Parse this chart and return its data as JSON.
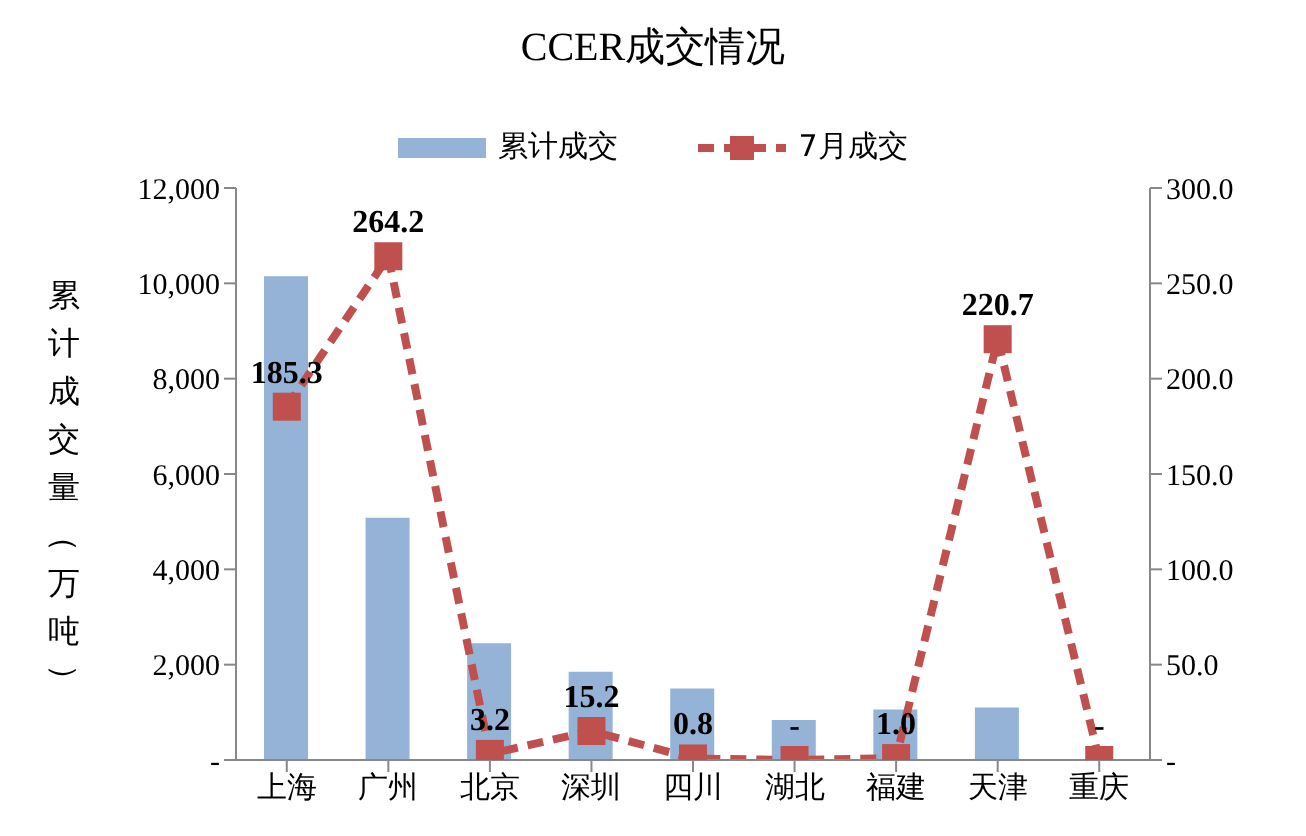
{
  "chart_data": {
    "type": "bar",
    "title": "CCER成交情况",
    "ylabel": "累计成交量（万吨）",
    "categories": [
      "上海",
      "广州",
      "北京",
      "深圳",
      "四川",
      "湖北",
      "福建",
      "天津",
      "重庆"
    ],
    "series": [
      {
        "name": "累计成交",
        "color": "#95b3d7",
        "values": [
          10150,
          5080,
          2450,
          1850,
          1500,
          840,
          1060,
          1100,
          0
        ]
      },
      {
        "name": "7月成交",
        "type": "line",
        "axis": "y2",
        "color": "#c0504d",
        "marker": "square",
        "line_style": "dashed",
        "values": [
          185.3,
          264.2,
          3.2,
          15.2,
          0.8,
          0,
          1.0,
          220.7,
          0
        ],
        "value_labels": [
          "185.3",
          "264.2",
          "3.2",
          "15.2",
          "0.8",
          "-",
          "1.0",
          "220.7",
          "-"
        ]
      }
    ],
    "ylim": [
      0,
      12000
    ],
    "yticks": [
      {
        "value": 0,
        "label": "-"
      },
      {
        "value": 2000,
        "label": "2,000"
      },
      {
        "value": 4000,
        "label": "4,000"
      },
      {
        "value": 6000,
        "label": "6,000"
      },
      {
        "value": 8000,
        "label": "8,000"
      },
      {
        "value": 10000,
        "label": "10,000"
      },
      {
        "value": 12000,
        "label": "12,000"
      }
    ],
    "y2lim": [
      0,
      300
    ],
    "y2ticks": [
      {
        "value": 0,
        "label": "-"
      },
      {
        "value": 50,
        "label": "50.0"
      },
      {
        "value": 100,
        "label": "100.0"
      },
      {
        "value": 150,
        "label": "150.0"
      },
      {
        "value": 200,
        "label": "200.0"
      },
      {
        "value": 250,
        "label": "250.0"
      },
      {
        "value": 300,
        "label": "300.0"
      }
    ],
    "grid": false,
    "legend": "top"
  }
}
